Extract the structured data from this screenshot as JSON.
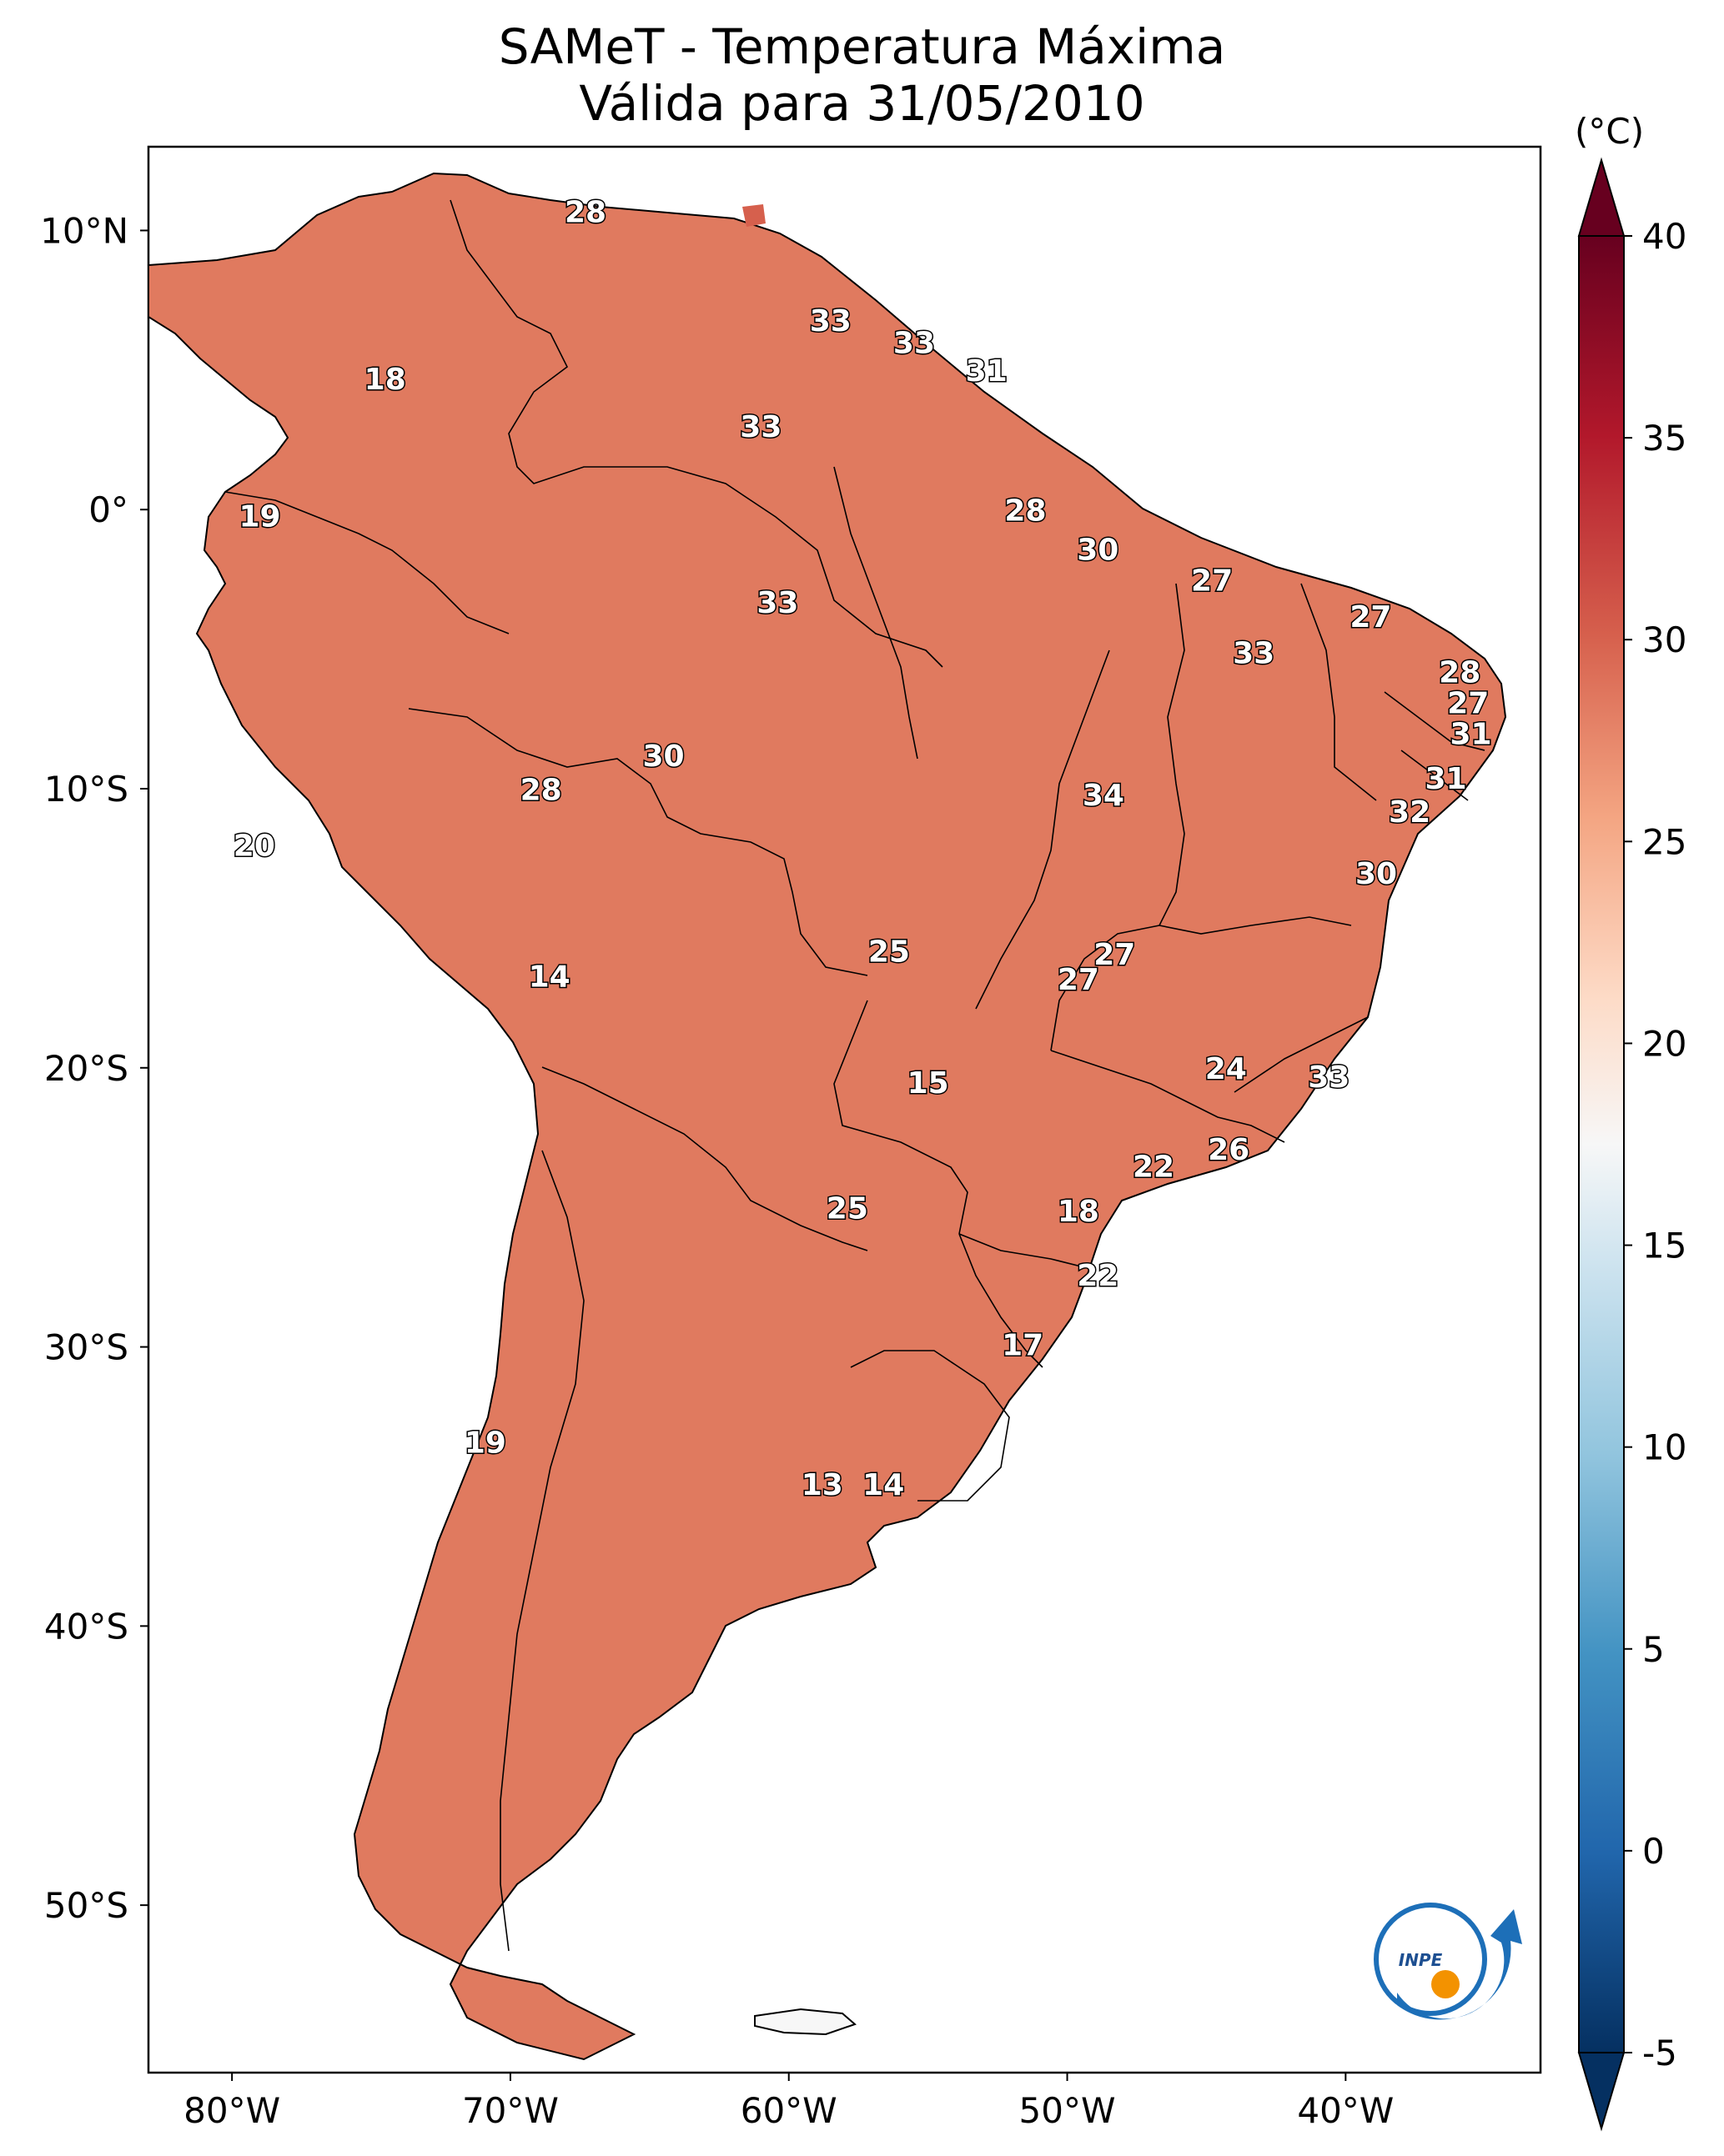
{
  "title": {
    "line1": "SAMeT - Temperatura Máxima",
    "line2": "Válida para 31/05/2010"
  },
  "map": {
    "lon_ticks": [
      "80°W",
      "70°W",
      "60°W",
      "50°W",
      "40°W"
    ],
    "lat_ticks": [
      "10°N",
      "0°",
      "10°S",
      "20°S",
      "30°S",
      "40°S",
      "50°S"
    ],
    "lon_range": [
      -83,
      -33
    ],
    "lat_range": [
      -56,
      13
    ]
  },
  "colorbar": {
    "unit": "(°C)",
    "min": -5,
    "max": 40,
    "ticks": [
      "40",
      "35",
      "30",
      "25",
      "20",
      "15",
      "10",
      "5",
      "0",
      "-5"
    ],
    "extend": "both",
    "colormap": "RdBu_r",
    "colors": [
      "#053061",
      "#2166ac",
      "#4393c3",
      "#92c5de",
      "#d1e5f0",
      "#f7f7f7",
      "#fddbc7",
      "#f4a582",
      "#d6604d",
      "#b2182b",
      "#67001f"
    ]
  },
  "labels": [
    {
      "text": "28",
      "lon": -67.3,
      "lat": 10.6
    },
    {
      "text": "18",
      "lon": -74.5,
      "lat": 4.6
    },
    {
      "text": "33",
      "lon": -58.5,
      "lat": 6.7
    },
    {
      "text": "33",
      "lon": -55.5,
      "lat": 5.9
    },
    {
      "text": "31",
      "lon": -52.9,
      "lat": 4.9
    },
    {
      "text": "33",
      "lon": -61.0,
      "lat": 2.9
    },
    {
      "text": "19",
      "lon": -79.0,
      "lat": -0.3
    },
    {
      "text": "28",
      "lon": -51.5,
      "lat": -0.1
    },
    {
      "text": "30",
      "lon": -48.9,
      "lat": -1.5
    },
    {
      "text": "33",
      "lon": -60.4,
      "lat": -3.4
    },
    {
      "text": "27",
      "lon": -44.8,
      "lat": -2.6
    },
    {
      "text": "27",
      "lon": -39.1,
      "lat": -3.9
    },
    {
      "text": "33",
      "lon": -43.3,
      "lat": -5.2
    },
    {
      "text": "28",
      "lon": -35.9,
      "lat": -5.9
    },
    {
      "text": "27",
      "lon": -35.6,
      "lat": -7.0
    },
    {
      "text": "31",
      "lon": -35.5,
      "lat": -8.1
    },
    {
      "text": "30",
      "lon": -64.5,
      "lat": -8.9
    },
    {
      "text": "28",
      "lon": -68.9,
      "lat": -10.1
    },
    {
      "text": "34",
      "lon": -48.7,
      "lat": -10.3
    },
    {
      "text": "31",
      "lon": -36.4,
      "lat": -9.7
    },
    {
      "text": "32",
      "lon": -37.7,
      "lat": -10.9
    },
    {
      "text": "20",
      "lon": -79.2,
      "lat": -12.1
    },
    {
      "text": "30",
      "lon": -38.9,
      "lat": -13.1
    },
    {
      "text": "25",
      "lon": -56.4,
      "lat": -15.9
    },
    {
      "text": "27",
      "lon": -48.3,
      "lat": -16.0
    },
    {
      "text": "27",
      "lon": -49.6,
      "lat": -16.9
    },
    {
      "text": "14",
      "lon": -68.6,
      "lat": -16.8
    },
    {
      "text": "24",
      "lon": -44.3,
      "lat": -20.1
    },
    {
      "text": "33",
      "lon": -40.6,
      "lat": -20.4
    },
    {
      "text": "15",
      "lon": -55.0,
      "lat": -20.6
    },
    {
      "text": "26",
      "lon": -44.2,
      "lat": -23.0
    },
    {
      "text": "22",
      "lon": -46.9,
      "lat": -23.6
    },
    {
      "text": "18",
      "lon": -49.6,
      "lat": -25.2
    },
    {
      "text": "25",
      "lon": -57.9,
      "lat": -25.1
    },
    {
      "text": "22",
      "lon": -48.9,
      "lat": -27.5
    },
    {
      "text": "17",
      "lon": -51.6,
      "lat": -30.0
    },
    {
      "text": "19",
      "lon": -70.9,
      "lat": -33.5
    },
    {
      "text": "13",
      "lon": -58.8,
      "lat": -35.0
    },
    {
      "text": "14",
      "lon": -56.6,
      "lat": -35.0
    }
  ],
  "logo": {
    "text": "INPE"
  }
}
